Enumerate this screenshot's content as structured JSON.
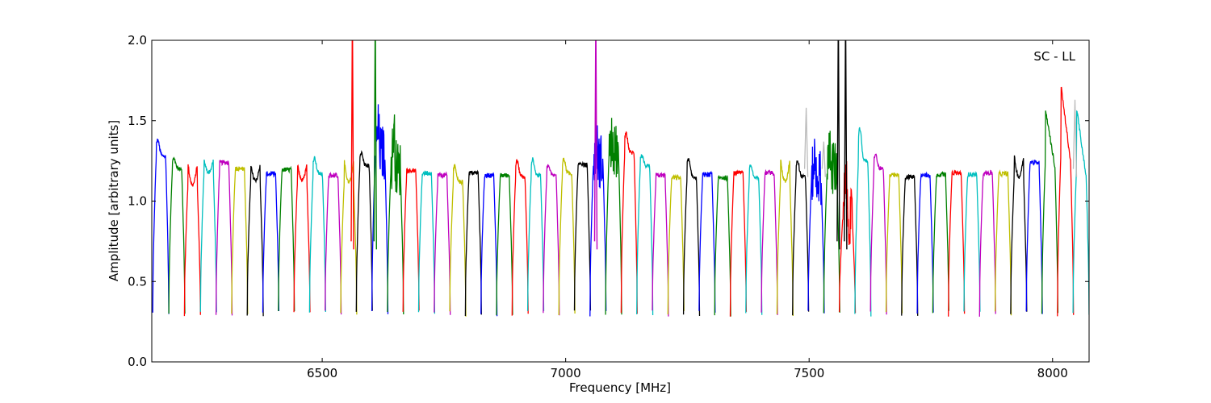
{
  "chart_data": {
    "type": "line",
    "title": "",
    "annotation": "SC - LL",
    "xlabel": "Frequency [MHz]",
    "ylabel": "Amplitude [arbitrary units]",
    "xlim": [
      6150,
      8075
    ],
    "ylim": [
      0.0,
      2.0
    ],
    "xticks": [
      6500,
      7000,
      7500,
      8000
    ],
    "xtick_labels": [
      "6500",
      "7000",
      "7500",
      "8000"
    ],
    "yticks": [
      0.0,
      0.5,
      1.0,
      1.5,
      2.0
    ],
    "ytick_labels": [
      "0.0",
      "0.5",
      "1.0",
      "1.5",
      "2.0"
    ],
    "grid": false,
    "legend": "none",
    "color_cycle": [
      "#0000ff",
      "#008000",
      "#ff0000",
      "#00bfbf",
      "#bf00bf",
      "#bfbf00",
      "#000000"
    ],
    "band_width_mhz": 32,
    "bands": [
      {
        "start": 6152,
        "peak": 1.38,
        "level": 1.28,
        "shape": "hump"
      },
      {
        "start": 6185,
        "peak": 1.26,
        "level": 1.2,
        "shape": "hump"
      },
      {
        "start": 6217,
        "peak": 1.23,
        "level": 1.1,
        "shape": "dip"
      },
      {
        "start": 6250,
        "peak": 1.25,
        "level": 1.18,
        "shape": "dip"
      },
      {
        "start": 6282,
        "peak": 1.28,
        "level": 1.2,
        "shape": "flat"
      },
      {
        "start": 6314,
        "peak": 1.23,
        "level": 1.17,
        "shape": "flat"
      },
      {
        "start": 6346,
        "peak": 1.22,
        "level": 1.13,
        "shape": "dip"
      },
      {
        "start": 6378,
        "peak": 1.19,
        "level": 1.15,
        "shape": "flat"
      },
      {
        "start": 6410,
        "peak": 1.21,
        "level": 1.18,
        "shape": "flat"
      },
      {
        "start": 6442,
        "peak": 1.23,
        "level": 1.13,
        "shape": "dip"
      },
      {
        "start": 6474,
        "peak": 1.27,
        "level": 1.17,
        "shape": "hump"
      },
      {
        "start": 6506,
        "peak": 1.17,
        "level": 1.15,
        "shape": "flat"
      },
      {
        "start": 6538,
        "peak": 1.25,
        "level": 1.12,
        "shape": "dip"
      },
      {
        "start": 6570,
        "peak": 1.3,
        "level": 1.22,
        "shape": "hump"
      },
      {
        "start": 6602,
        "peak": 1.44,
        "level": 1.3,
        "shape": "spiky"
      },
      {
        "start": 6634,
        "peak": 1.45,
        "level": 1.2,
        "shape": "spiky"
      },
      {
        "start": 6666,
        "peak": 1.23,
        "level": 1.15,
        "shape": "flat"
      },
      {
        "start": 6698,
        "peak": 1.2,
        "level": 1.15,
        "shape": "flat"
      },
      {
        "start": 6730,
        "peak": 1.2,
        "level": 1.12,
        "shape": "flat"
      },
      {
        "start": 6762,
        "peak": 1.22,
        "level": 1.12,
        "shape": "hump"
      },
      {
        "start": 6794,
        "peak": 1.2,
        "level": 1.15,
        "shape": "flat"
      },
      {
        "start": 6826,
        "peak": 1.18,
        "level": 1.14,
        "shape": "flat"
      },
      {
        "start": 6858,
        "peak": 1.2,
        "level": 1.12,
        "shape": "flat"
      },
      {
        "start": 6890,
        "peak": 1.25,
        "level": 1.15,
        "shape": "hump"
      },
      {
        "start": 6922,
        "peak": 1.26,
        "level": 1.16,
        "shape": "hump"
      },
      {
        "start": 6954,
        "peak": 1.22,
        "level": 1.16,
        "shape": "hump"
      },
      {
        "start": 6986,
        "peak": 1.26,
        "level": 1.17,
        "shape": "hump"
      },
      {
        "start": 7018,
        "peak": 1.25,
        "level": 1.2,
        "shape": "flat"
      },
      {
        "start": 7050,
        "peak": 1.36,
        "level": 1.25,
        "shape": "spiky"
      },
      {
        "start": 7082,
        "peak": 1.42,
        "level": 1.3,
        "shape": "spiky"
      },
      {
        "start": 7114,
        "peak": 1.42,
        "level": 1.3,
        "shape": "hump"
      },
      {
        "start": 7146,
        "peak": 1.28,
        "level": 1.22,
        "shape": "hump"
      },
      {
        "start": 7178,
        "peak": 1.2,
        "level": 1.12,
        "shape": "flat"
      },
      {
        "start": 7210,
        "peak": 1.17,
        "level": 1.12,
        "shape": "flat"
      },
      {
        "start": 7242,
        "peak": 1.26,
        "level": 1.15,
        "shape": "hump"
      },
      {
        "start": 7274,
        "peak": 1.18,
        "level": 1.15,
        "shape": "flat"
      },
      {
        "start": 7306,
        "peak": 1.17,
        "level": 1.12,
        "shape": "flat"
      },
      {
        "start": 7338,
        "peak": 1.2,
        "level": 1.15,
        "shape": "flat"
      },
      {
        "start": 7370,
        "peak": 1.22,
        "level": 1.14,
        "shape": "hump"
      },
      {
        "start": 7402,
        "peak": 1.2,
        "level": 1.15,
        "shape": "flat"
      },
      {
        "start": 7434,
        "peak": 1.26,
        "level": 1.12,
        "shape": "dip"
      },
      {
        "start": 7466,
        "peak": 1.25,
        "level": 1.15,
        "shape": "hump"
      },
      {
        "start": 7498,
        "peak": 1.26,
        "level": 1.15,
        "shape": "spiky"
      },
      {
        "start": 7530,
        "peak": 1.36,
        "level": 1.2,
        "shape": "spiky"
      },
      {
        "start": 7562,
        "peak": 1.2,
        "level": 0.9,
        "shape": "spiky"
      },
      {
        "start": 7594,
        "peak": 1.45,
        "level": 1.25,
        "shape": "hump"
      },
      {
        "start": 7626,
        "peak": 1.29,
        "level": 1.2,
        "shape": "hump"
      },
      {
        "start": 7658,
        "peak": 1.2,
        "level": 1.12,
        "shape": "flat"
      },
      {
        "start": 7690,
        "peak": 1.18,
        "level": 1.12,
        "shape": "flat"
      },
      {
        "start": 7722,
        "peak": 1.18,
        "level": 1.14,
        "shape": "flat"
      },
      {
        "start": 7754,
        "peak": 1.2,
        "level": 1.13,
        "shape": "flat"
      },
      {
        "start": 7786,
        "peak": 1.2,
        "level": 1.15,
        "shape": "flat"
      },
      {
        "start": 7818,
        "peak": 1.19,
        "level": 1.14,
        "shape": "flat"
      },
      {
        "start": 7850,
        "peak": 1.2,
        "level": 1.15,
        "shape": "flat"
      },
      {
        "start": 7882,
        "peak": 1.2,
        "level": 1.14,
        "shape": "flat"
      },
      {
        "start": 7914,
        "peak": 1.28,
        "level": 1.15,
        "shape": "dip"
      },
      {
        "start": 7946,
        "peak": 1.28,
        "level": 1.2,
        "shape": "flat"
      },
      {
        "start": 7978,
        "peak": 1.57,
        "level": 1.25,
        "shape": "decline"
      },
      {
        "start": 8010,
        "peak": 1.72,
        "level": 1.3,
        "shape": "decline"
      },
      {
        "start": 8042,
        "peak": 1.58,
        "level": 1.2,
        "shape": "decline"
      }
    ],
    "spikes": [
      {
        "x": 6562,
        "color": "#ff0000"
      },
      {
        "x": 6609,
        "color": "#008000"
      },
      {
        "x": 7062,
        "color": "#bf00bf"
      },
      {
        "x": 7560,
        "color": "#000000"
      },
      {
        "x": 7575,
        "color": "#000000"
      }
    ],
    "faint_spikes": [
      {
        "x": 7494,
        "peak": 1.58
      },
      {
        "x": 7530,
        "peak": 1.37
      },
      {
        "x": 8046,
        "peak": 1.63
      }
    ]
  }
}
